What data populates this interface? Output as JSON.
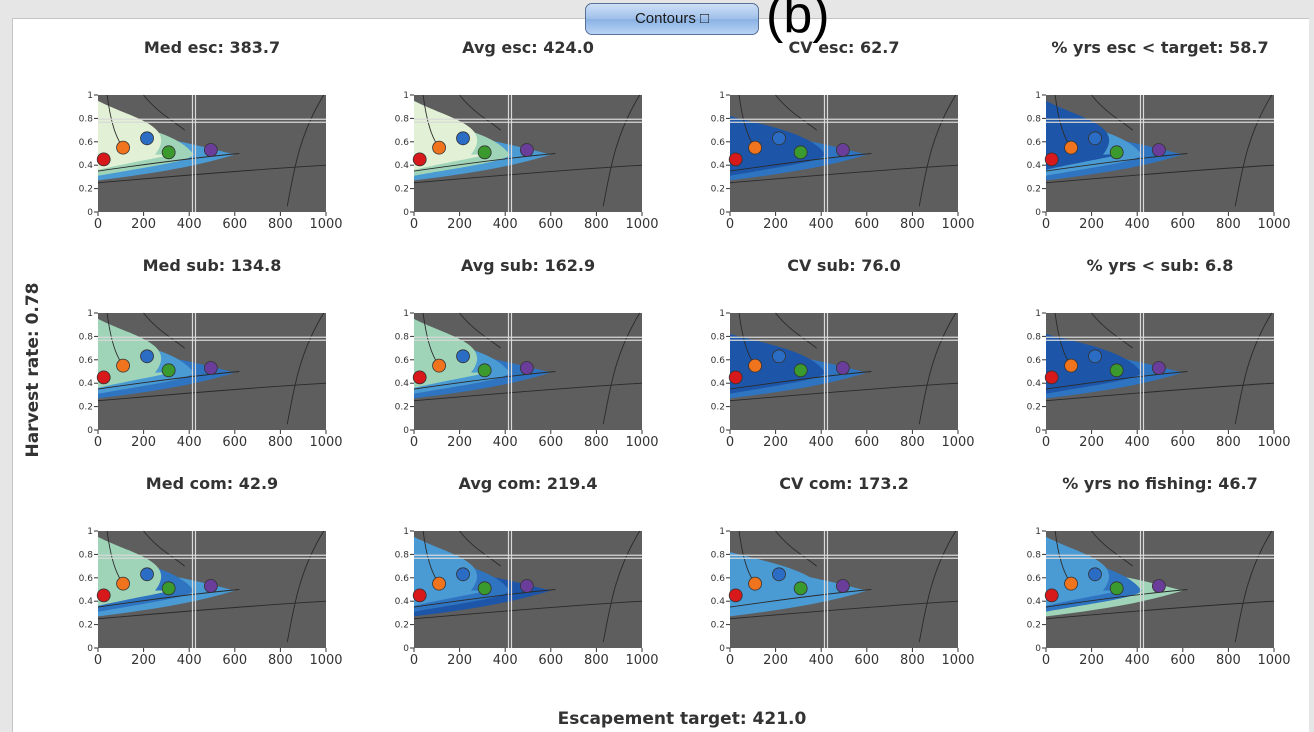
{
  "header": {
    "button_label": "Contours □",
    "panel_label": "(b)"
  },
  "axis_labels": {
    "y_label": "Harvest rate: 0.78",
    "x_label": "Escapement target: 421.0"
  },
  "plots": [
    {
      "title": "Med esc: 383.7"
    },
    {
      "title": "Avg esc: 424.0"
    },
    {
      "title": "CV esc: 62.7"
    },
    {
      "title": "% yrs esc < target: 58.7"
    },
    {
      "title": "Med sub: 134.8"
    },
    {
      "title": "Avg sub: 162.9"
    },
    {
      "title": "CV sub: 76.0"
    },
    {
      "title": "% yrs < sub: 6.8"
    },
    {
      "title": "Med com: 42.9"
    },
    {
      "title": "Avg com: 219.4"
    },
    {
      "title": "CV com: 173.2"
    },
    {
      "title": "% yrs no fishing: 46.7"
    }
  ],
  "x_ticks": [
    "0",
    "200",
    "400",
    "600",
    "800",
    "1000"
  ],
  "y_ticks": [
    "0",
    "0.2",
    "0.4",
    "0.6",
    "0.8",
    "1"
  ],
  "xlim": [
    0,
    1000
  ],
  "ylim": [
    0,
    1
  ],
  "crosshair": {
    "x": 421.0,
    "y": 0.78
  },
  "points": [
    {
      "x": 25,
      "y": 0.45,
      "color": "#d7191c"
    },
    {
      "x": 110,
      "y": 0.55,
      "color": "#f0741e"
    },
    {
      "x": 215,
      "y": 0.63,
      "color": "#2b6cc4"
    },
    {
      "x": 310,
      "y": 0.51,
      "color": "#3a9a2e"
    },
    {
      "x": 495,
      "y": 0.53,
      "color": "#6a3d9a"
    }
  ],
  "colors": {
    "plot_bg": "#5e5e5e",
    "region_outer": "#4a9ad4",
    "region_mid": "#2f74c0",
    "region_inner": "#1d56a8",
    "region_light": "#9fd4b8",
    "region_pale": "#e2f1d5"
  }
}
